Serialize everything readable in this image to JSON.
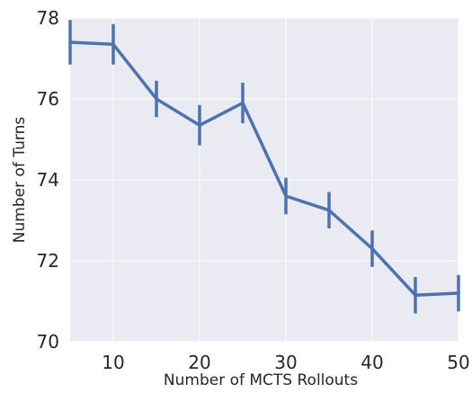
{
  "chart_data": {
    "type": "line",
    "title": "",
    "xlabel": "Number of MCTS Rollouts",
    "ylabel": "Number of Turns",
    "xlim": [
      5,
      50
    ],
    "ylim": [
      70,
      78
    ],
    "xticks": [
      10,
      20,
      30,
      40,
      50
    ],
    "yticks": [
      70,
      72,
      74,
      76,
      78
    ],
    "grid": true,
    "series": [
      {
        "x": [
          5,
          10,
          15,
          20,
          25,
          30,
          35,
          40,
          45,
          50
        ],
        "values": [
          77.4,
          77.35,
          76.0,
          75.35,
          75.9,
          73.6,
          73.25,
          72.3,
          71.15,
          71.2
        ],
        "error": [
          0.55,
          0.5,
          0.45,
          0.5,
          0.5,
          0.45,
          0.45,
          0.45,
          0.45,
          0.45
        ],
        "color": "#4C72B0"
      }
    ]
  },
  "colors": {
    "background": "#EAEAF2",
    "grid": "#FFFFFF",
    "line": "#4C72B0"
  }
}
